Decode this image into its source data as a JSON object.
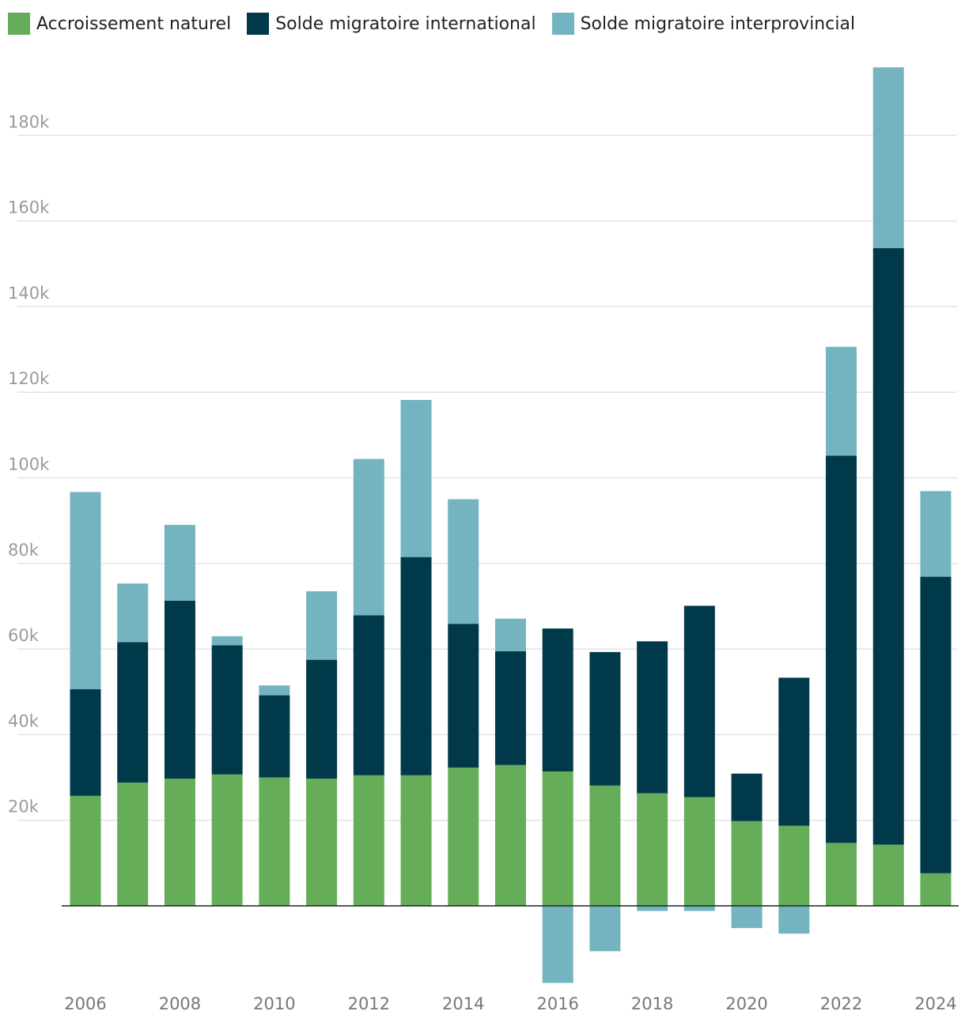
{
  "chart_data": {
    "type": "bar",
    "stacked": true,
    "title": "",
    "xlabel": "",
    "ylabel": "",
    "ylim": [
      -18000,
      196000
    ],
    "yticks": [
      20000,
      40000,
      60000,
      80000,
      100000,
      120000,
      140000,
      160000,
      180000
    ],
    "ytick_labels": [
      "20k",
      "40k",
      "60k",
      "80k",
      "100k",
      "120k",
      "140k",
      "160k",
      "180k"
    ],
    "x": [
      2006,
      2007,
      2008,
      2009,
      2010,
      2011,
      2012,
      2013,
      2014,
      2015,
      2016,
      2017,
      2018,
      2019,
      2020,
      2021,
      2022,
      2023,
      2024
    ],
    "xtick_labels": [
      "2006",
      "2008",
      "2010",
      "2012",
      "2014",
      "2016",
      "2018",
      "2020",
      "2022",
      "2024"
    ],
    "grid": "horizontal",
    "legend": "top-left",
    "series": [
      {
        "name": "Accroissement naturel",
        "color": "#65ad58",
        "values": [
          25700,
          28800,
          29700,
          30700,
          30000,
          29700,
          30500,
          30500,
          32300,
          32900,
          31400,
          28100,
          26300,
          25400,
          19800,
          18700,
          14700,
          14300,
          7600
        ]
      },
      {
        "name": "Solde migratoire international",
        "color": "#003a4a",
        "values": [
          24900,
          32800,
          41600,
          30200,
          19200,
          27800,
          37400,
          51000,
          33600,
          26600,
          33400,
          31200,
          35500,
          44700,
          11100,
          34600,
          90500,
          139400,
          69300
        ]
      },
      {
        "name": "Solde migratoire interprovincial",
        "color": "#74b4c0",
        "values": [
          46100,
          13700,
          17700,
          2100,
          2300,
          16000,
          36500,
          36700,
          29100,
          7600,
          -18000,
          -10600,
          -1200,
          -1200,
          -5200,
          -6500,
          25400,
          42200,
          20000
        ]
      }
    ]
  }
}
